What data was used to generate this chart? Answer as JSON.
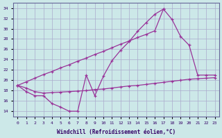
{
  "xlabel": "Windchill (Refroidissement éolien,°C)",
  "background_color": "#cce8e8",
  "grid_color": "#aaaacc",
  "line_color": "#993399",
  "xlim_min": -0.5,
  "xlim_max": 23.5,
  "ylim_min": 13.0,
  "ylim_max": 35.0,
  "xticks": [
    0,
    1,
    2,
    3,
    4,
    5,
    6,
    7,
    8,
    9,
    10,
    11,
    12,
    13,
    14,
    15,
    16,
    17,
    18,
    19,
    20,
    21,
    22,
    23
  ],
  "yticks": [
    14,
    16,
    18,
    20,
    22,
    24,
    26,
    28,
    30,
    32,
    34
  ],
  "curve1_x": [
    0,
    1,
    2,
    3,
    4,
    5,
    6,
    7,
    8,
    9,
    10,
    11,
    12,
    13,
    14,
    15,
    16,
    17
  ],
  "curve1_y": [
    19.0,
    17.8,
    17.0,
    17.0,
    15.5,
    14.8,
    14.0,
    14.0,
    21.0,
    17.0,
    20.8,
    23.8,
    25.8,
    27.5,
    29.5,
    31.2,
    32.8,
    33.8
  ],
  "curve2_x": [
    0,
    1,
    2,
    3,
    4,
    5,
    6,
    7,
    8,
    9,
    10,
    11,
    12,
    13,
    14,
    15,
    16,
    17,
    18,
    19,
    20,
    21,
    22,
    23
  ],
  "curve2_y": [
    19.0,
    19.7,
    20.4,
    21.1,
    21.7,
    22.4,
    23.0,
    23.7,
    24.3,
    25.0,
    25.6,
    26.3,
    27.0,
    27.6,
    28.3,
    28.9,
    29.6,
    33.8,
    31.8,
    28.5,
    26.8,
    21.0,
    21.0,
    21.0
  ],
  "curve3_x": [
    0,
    1,
    2,
    3,
    4,
    5,
    6,
    7,
    8,
    9,
    10,
    11,
    12,
    13,
    14,
    15,
    16,
    17,
    18,
    19,
    20,
    21,
    22,
    23
  ],
  "curve3_y": [
    19.0,
    18.5,
    17.8,
    17.5,
    17.6,
    17.7,
    17.8,
    17.9,
    18.0,
    18.2,
    18.3,
    18.5,
    18.7,
    18.9,
    19.0,
    19.2,
    19.4,
    19.6,
    19.8,
    20.0,
    20.2,
    20.3,
    20.4,
    20.5
  ]
}
